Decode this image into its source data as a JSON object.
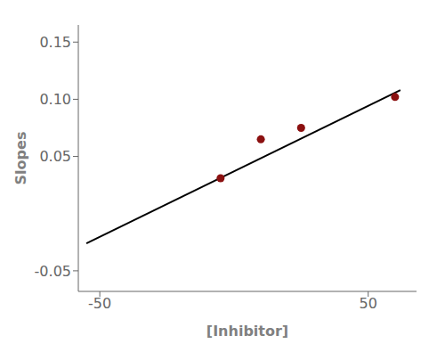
{
  "chart_data": {
    "type": "scatter",
    "xlabel": "[Inhibitor]",
    "ylabel": "Slopes",
    "xlim": [
      -58,
      68
    ],
    "ylim": [
      -0.068,
      0.165
    ],
    "xticks": [
      -50,
      50
    ],
    "yticks": [
      -0.05,
      0.05,
      {
        "value": 0.1,
        "label": "0.10"
      },
      0.15
    ],
    "grid": false,
    "series": [
      {
        "type": "line",
        "color": "#000000",
        "x": [
          -55,
          62
        ],
        "values": [
          -0.026,
          0.108
        ]
      },
      {
        "type": "scatter",
        "color": "#8B1010",
        "x": [
          -5,
          10,
          25,
          60
        ],
        "values": [
          0.031,
          0.065,
          0.075,
          0.102
        ]
      }
    ]
  }
}
